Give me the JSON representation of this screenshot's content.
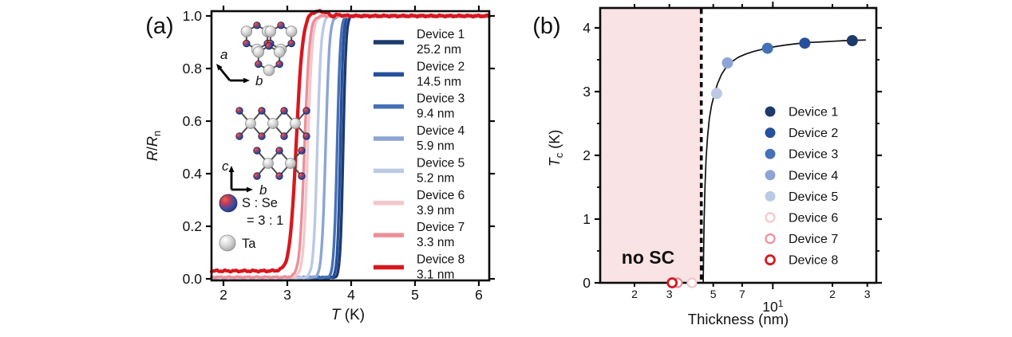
{
  "panels": {
    "a_label": "(a)",
    "b_label": "(b)"
  },
  "palette": {
    "device_colors": [
      "#1d3a6d",
      "#26509e",
      "#4571b5",
      "#8da4d4",
      "#bcc9e5",
      "#f3c7cb",
      "#eb8f9a",
      "#d8171e"
    ],
    "axis_color": "#0a0a0a",
    "no_sc_region_color": "#fae3e5",
    "fit_line_color": "#111111",
    "bond_color": "#4d4d4d"
  },
  "chart_data": [
    {
      "type": "line",
      "panel": "a",
      "xlabel_parts": [
        {
          "t": "T",
          "italic": true
        },
        {
          "t": " (K)"
        }
      ],
      "ylabel_parts": [
        {
          "t": "R",
          "italic": true
        },
        {
          "t": "/"
        },
        {
          "t": "R",
          "italic": true
        },
        {
          "t": "n",
          "sub": true
        }
      ],
      "xlim": [
        1.8125,
        6.1625
      ],
      "ylim": [
        -0.006,
        1.024
      ],
      "x_ticks": [
        "2",
        "3",
        "4",
        "5",
        "6"
      ],
      "y_ticks": [
        "0.0",
        "0.2",
        "0.4",
        "0.6",
        "0.8",
        "1.0"
      ],
      "series": [
        {
          "name": "Device 1",
          "thickness": "25.2 nm",
          "color_index": 0,
          "tc_mid": 3.875,
          "width": 0.022,
          "residual": 0.004,
          "bump": false
        },
        {
          "name": "Device 2",
          "thickness": "14.5 nm",
          "color_index": 1,
          "tc_mid": 3.83,
          "width": 0.022,
          "residual": 0.004,
          "bump": false
        },
        {
          "name": "Device 3",
          "thickness": "9.4 nm",
          "color_index": 2,
          "tc_mid": 3.78,
          "width": 0.025,
          "residual": 0.004,
          "bump": false
        },
        {
          "name": "Device 4",
          "thickness": "5.9 nm",
          "color_index": 3,
          "tc_mid": 3.6,
          "width": 0.03,
          "residual": 0.004,
          "bump": false
        },
        {
          "name": "Device 5",
          "thickness": "5.2 nm",
          "color_index": 4,
          "tc_mid": 3.47,
          "width": 0.03,
          "residual": 0.004,
          "bump": false
        },
        {
          "name": "Device 6",
          "thickness": "3.9 nm",
          "color_index": 5,
          "tc_mid": 3.32,
          "width": 0.035,
          "residual": 0.006,
          "bump": false
        },
        {
          "name": "Device 7",
          "thickness": "3.3 nm",
          "color_index": 6,
          "tc_mid": 3.27,
          "width": 0.038,
          "residual": 0.006,
          "bump": false
        },
        {
          "name": "Device 8",
          "thickness": "3.1 nm",
          "color_index": 7,
          "tc_mid": 3.14,
          "width": 0.05,
          "residual": 0.03,
          "bump": true
        }
      ],
      "inset_labels": {
        "axis_a": "a",
        "axis_b": "b",
        "axis_c": "c",
        "axis_b2": "b",
        "sphere_legend_line1": "S : Se",
        "sphere_legend_line2": "= 3 : 1",
        "ta_label": "Ta"
      }
    },
    {
      "type": "scatter",
      "panel": "b",
      "xscale": "log",
      "xlabel_parts": [
        {
          "t": "Thickness (nm)"
        }
      ],
      "ylabel_parts": [
        {
          "t": "T",
          "italic": true
        },
        {
          "t": "c",
          "sub": true
        },
        {
          "t": " (K)"
        }
      ],
      "xlim": [
        1.35,
        33
      ],
      "ylim": [
        0,
        4.31
      ],
      "x_ticks": [
        {
          "v": 2,
          "label": "2",
          "major": false
        },
        {
          "v": 3,
          "label": "3",
          "major": false
        },
        {
          "v": 5,
          "label": "5",
          "major": false
        },
        {
          "v": 7,
          "label": "7",
          "major": false
        },
        {
          "v": 10,
          "label": "10",
          "sup": "1",
          "major": true
        },
        {
          "v": 20,
          "label": "2",
          "major": false
        },
        {
          "v": 30,
          "label": "3",
          "major": false
        }
      ],
      "y_ticks": [
        "0",
        "1",
        "2",
        "3",
        "4"
      ],
      "y_minor_ticks": [
        0.5,
        1.5,
        2.5,
        3.5
      ],
      "critical_thickness_nm": 4.35,
      "no_sc_label": "no SC",
      "points": [
        {
          "name": "Device 1",
          "thickness_nm": 25.2,
          "tc_K": 3.8,
          "color_index": 0,
          "filled": true
        },
        {
          "name": "Device 2",
          "thickness_nm": 14.5,
          "tc_K": 3.76,
          "color_index": 1,
          "filled": true
        },
        {
          "name": "Device 3",
          "thickness_nm": 9.4,
          "tc_K": 3.68,
          "color_index": 2,
          "filled": true
        },
        {
          "name": "Device 4",
          "thickness_nm": 5.9,
          "tc_K": 3.45,
          "color_index": 3,
          "filled": true
        },
        {
          "name": "Device 5",
          "thickness_nm": 5.2,
          "tc_K": 2.97,
          "color_index": 4,
          "filled": true
        },
        {
          "name": "Device 6",
          "thickness_nm": 3.9,
          "tc_K": 0,
          "color_index": 5,
          "filled": false
        },
        {
          "name": "Device 7",
          "thickness_nm": 3.3,
          "tc_K": 0,
          "color_index": 6,
          "filled": false
        },
        {
          "name": "Device 8",
          "thickness_nm": 3.1,
          "tc_K": 0,
          "color_index": 7,
          "filled": false
        }
      ],
      "fit_curve": [
        [
          4.45,
          0.0
        ],
        [
          4.47,
          0.5
        ],
        [
          4.5,
          1.0
        ],
        [
          4.54,
          1.5
        ],
        [
          4.6,
          1.95
        ],
        [
          4.68,
          2.3
        ],
        [
          4.78,
          2.58
        ],
        [
          4.9,
          2.78
        ],
        [
          5.05,
          2.95
        ],
        [
          5.25,
          3.12
        ],
        [
          5.5,
          3.27
        ],
        [
          5.8,
          3.38
        ],
        [
          6.2,
          3.47
        ],
        [
          6.7,
          3.54
        ],
        [
          7.3,
          3.59
        ],
        [
          8.0,
          3.63
        ],
        [
          9.0,
          3.67
        ],
        [
          10.0,
          3.7
        ],
        [
          11.5,
          3.73
        ],
        [
          13.0,
          3.75
        ],
        [
          15.0,
          3.77
        ],
        [
          17.5,
          3.78
        ],
        [
          20.0,
          3.79
        ],
        [
          23.0,
          3.8
        ],
        [
          26.0,
          3.805
        ],
        [
          29.5,
          3.81
        ]
      ]
    }
  ]
}
